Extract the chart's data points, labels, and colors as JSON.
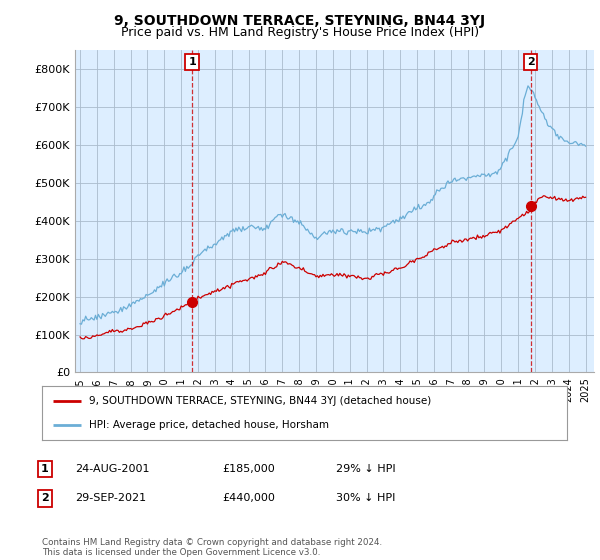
{
  "title": "9, SOUTHDOWN TERRACE, STEYNING, BN44 3YJ",
  "subtitle": "Price paid vs. HM Land Registry's House Price Index (HPI)",
  "ylim": [
    0,
    850000
  ],
  "yticks": [
    0,
    100000,
    200000,
    300000,
    400000,
    500000,
    600000,
    700000,
    800000
  ],
  "ytick_labels": [
    "£0",
    "£100K",
    "£200K",
    "£300K",
    "£400K",
    "£500K",
    "£600K",
    "£700K",
    "£800K"
  ],
  "hpi_color": "#6baed6",
  "price_color": "#cc0000",
  "marker1_year": 2001.65,
  "marker1_price": 185000,
  "marker1_label": "1",
  "marker2_year": 2021.75,
  "marker2_price": 440000,
  "marker2_label": "2",
  "legend_entries": [
    "9, SOUTHDOWN TERRACE, STEYNING, BN44 3YJ (detached house)",
    "HPI: Average price, detached house, Horsham"
  ],
  "table_rows": [
    [
      "1",
      "24-AUG-2001",
      "£185,000",
      "29% ↓ HPI"
    ],
    [
      "2",
      "29-SEP-2021",
      "£440,000",
      "30% ↓ HPI"
    ]
  ],
  "footnote": "Contains HM Land Registry data © Crown copyright and database right 2024.\nThis data is licensed under the Open Government Licence v3.0.",
  "bg_color": "#ffffff",
  "plot_bg_color": "#ddeeff",
  "grid_color": "#aabbcc",
  "title_fontsize": 10,
  "subtitle_fontsize": 9
}
